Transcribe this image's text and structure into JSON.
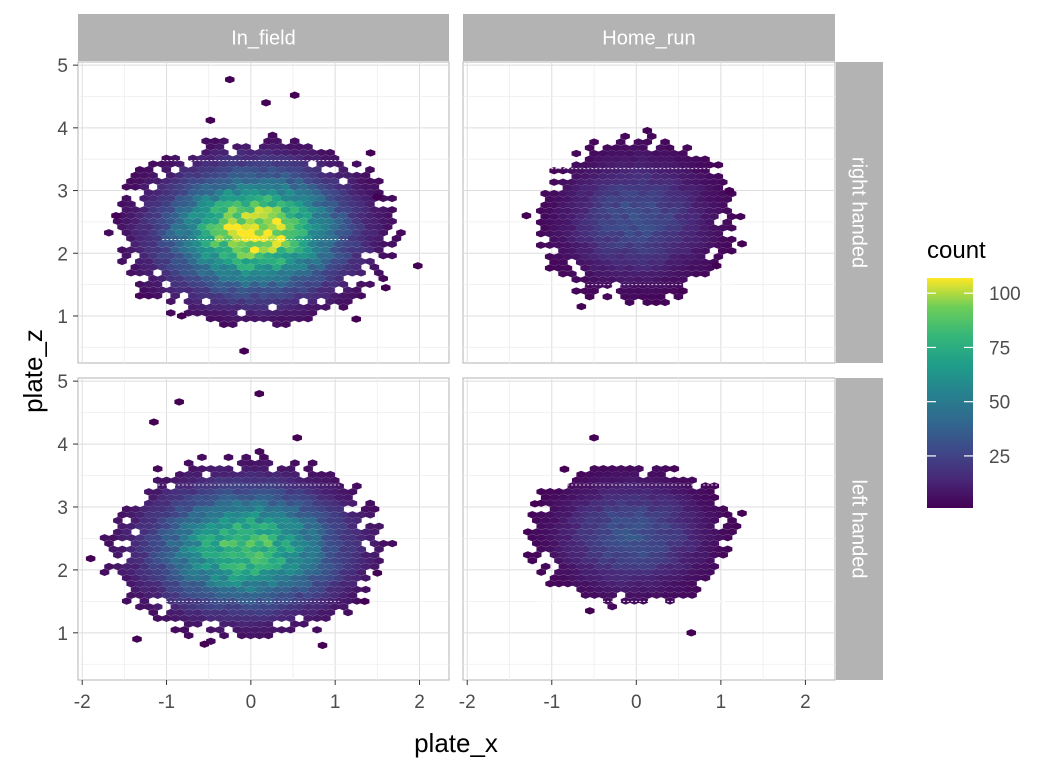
{
  "chart_data": {
    "type": "heatmap",
    "subtype": "hexbin",
    "title": "",
    "xlabel": "plate_x",
    "ylabel": "plate_z",
    "xlim": [
      -2.05,
      2.35
    ],
    "ylim": [
      0.25,
      5.05
    ],
    "x_ticks": [
      -2,
      -1,
      0,
      1,
      2
    ],
    "y_ticks": [
      1,
      2,
      3,
      4,
      5
    ],
    "x_tick_labels": [
      "-2",
      "-1",
      "0",
      "1",
      "2"
    ],
    "y_tick_labels": [
      "1",
      "2",
      "3",
      "4",
      "5"
    ],
    "columns": [
      "In_field",
      "Home_run"
    ],
    "rows": [
      "right handed",
      "left handed"
    ],
    "grid": true,
    "color_scale": "viridis",
    "legend": {
      "title": "count",
      "position": "right",
      "range": [
        1,
        107
      ],
      "ticks": [
        25,
        50,
        75,
        100
      ],
      "tick_labels": [
        "25",
        "50",
        "75",
        "100"
      ]
    },
    "panels": [
      {
        "column": "In_field",
        "row": "right handed",
        "center": [
          0.05,
          2.35
        ],
        "spread": [
          0.68,
          0.62
        ],
        "extent": [
          1.65,
          1.45
        ],
        "peak": 107,
        "strike_zone_lines": [
          3.48,
          2.22
        ],
        "outliers": [
          [
            -0.25,
            4.77
          ],
          [
            1.98,
            1.8
          ],
          [
            -0.08,
            0.44
          ],
          [
            0.18,
            4.4
          ],
          [
            0.52,
            4.52
          ],
          [
            -0.48,
            4.12
          ],
          [
            1.5,
            2.9
          ],
          [
            -1.6,
            2.6
          ],
          [
            1.42,
            3.6
          ],
          [
            -0.82,
            1.0
          ],
          [
            1.6,
            1.45
          ],
          [
            1.25,
            0.95
          ]
        ]
      },
      {
        "column": "Home_run",
        "row": "right handed",
        "center": [
          0.0,
          2.55
        ],
        "spread": [
          0.55,
          0.62
        ],
        "extent": [
          1.15,
          1.3
        ],
        "peak": 30,
        "strike_zone_lines": [
          3.35,
          1.5
        ],
        "outliers": [
          [
            1.25,
            2.15
          ],
          [
            -1.3,
            2.6
          ],
          [
            0.95,
            1.8
          ],
          [
            -0.65,
            1.15
          ],
          [
            0.55,
            1.4
          ],
          [
            1.1,
            3.0
          ]
        ]
      },
      {
        "column": "In_field",
        "row": "left handed",
        "center": [
          -0.05,
          2.35
        ],
        "spread": [
          0.72,
          0.62
        ],
        "extent": [
          1.6,
          1.45
        ],
        "peak": 85,
        "strike_zone_lines": [
          3.35,
          1.5
        ],
        "outliers": [
          [
            -0.85,
            4.67
          ],
          [
            0.1,
            4.8
          ],
          [
            -1.9,
            2.18
          ],
          [
            -1.15,
            4.35
          ],
          [
            1.5,
            1.95
          ],
          [
            1.35,
            1.5
          ],
          [
            0.85,
            0.8
          ],
          [
            -1.35,
            0.9
          ],
          [
            -0.55,
            0.82
          ],
          [
            0.55,
            4.1
          ]
        ]
      },
      {
        "column": "Home_run",
        "row": "left handed",
        "center": [
          -0.05,
          2.55
        ],
        "spread": [
          0.55,
          0.55
        ],
        "extent": [
          1.2,
          1.1
        ],
        "peak": 32,
        "strike_zone_lines": [
          3.35,
          1.5
        ],
        "outliers": [
          [
            1.25,
            2.9
          ],
          [
            -1.2,
            3.05
          ],
          [
            -0.5,
            4.1
          ],
          [
            0.65,
            1.0
          ],
          [
            -0.55,
            1.35
          ],
          [
            -0.85,
            3.6
          ]
        ]
      }
    ]
  }
}
